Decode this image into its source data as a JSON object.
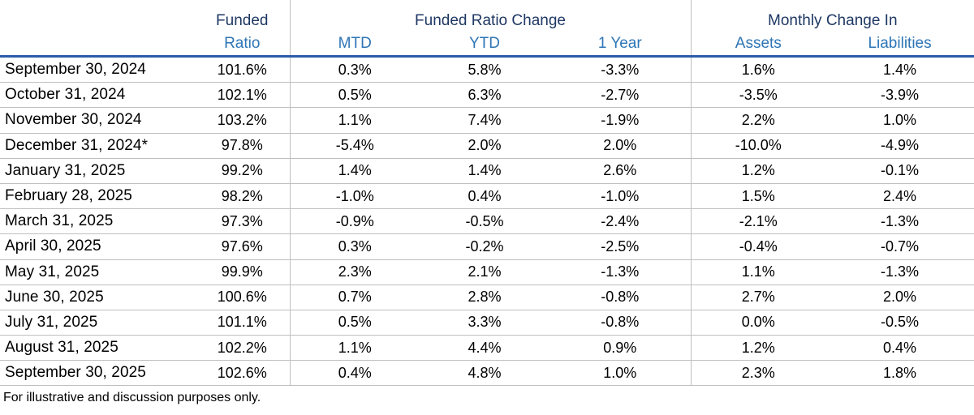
{
  "colors": {
    "group_header_text": "#1F3864",
    "column_header_text": "#2E75B6",
    "header_underline": "#2B5CA8",
    "grid_line": "#BFBFBF",
    "body_text": "#000000",
    "background": "#FFFFFF"
  },
  "header": {
    "funded": "Funded",
    "ratio": "Ratio",
    "funded_ratio_change": "Funded Ratio Change",
    "mtd": "MTD",
    "ytd": "YTD",
    "one_year": "1 Year",
    "monthly_change_in": "Monthly Change In",
    "assets": "Assets",
    "liabilities": "Liabilities"
  },
  "rows": [
    {
      "date": "September 30, 2024",
      "funded_ratio": "101.6%",
      "mtd": "0.3%",
      "ytd": "5.8%",
      "one_year": "-3.3%",
      "assets": "1.6%",
      "liabilities": "1.4%"
    },
    {
      "date": "October 31, 2024",
      "funded_ratio": "102.1%",
      "mtd": "0.5%",
      "ytd": "6.3%",
      "one_year": "-2.7%",
      "assets": "-3.5%",
      "liabilities": "-3.9%"
    },
    {
      "date": "November 30, 2024",
      "funded_ratio": "103.2%",
      "mtd": "1.1%",
      "ytd": "7.4%",
      "one_year": "-1.9%",
      "assets": "2.2%",
      "liabilities": "1.0%"
    },
    {
      "date": "December 31, 2024*",
      "funded_ratio": "97.8%",
      "mtd": "-5.4%",
      "ytd": "2.0%",
      "one_year": "2.0%",
      "assets": "-10.0%",
      "liabilities": "-4.9%"
    },
    {
      "date": "January 31, 2025",
      "funded_ratio": "99.2%",
      "mtd": "1.4%",
      "ytd": "1.4%",
      "one_year": "2.6%",
      "assets": "1.2%",
      "liabilities": "-0.1%"
    },
    {
      "date": "February 28, 2025",
      "funded_ratio": "98.2%",
      "mtd": "-1.0%",
      "ytd": "0.4%",
      "one_year": "-1.0%",
      "assets": "1.5%",
      "liabilities": "2.4%"
    },
    {
      "date": "March 31, 2025",
      "funded_ratio": "97.3%",
      "mtd": "-0.9%",
      "ytd": "-0.5%",
      "one_year": "-2.4%",
      "assets": "-2.1%",
      "liabilities": "-1.3%"
    },
    {
      "date": "April 30, 2025",
      "funded_ratio": "97.6%",
      "mtd": "0.3%",
      "ytd": "-0.2%",
      "one_year": "-2.5%",
      "assets": "-0.4%",
      "liabilities": "-0.7%"
    },
    {
      "date": "May 31, 2025",
      "funded_ratio": "99.9%",
      "mtd": "2.3%",
      "ytd": "2.1%",
      "one_year": "-1.3%",
      "assets": "1.1%",
      "liabilities": "-1.3%"
    },
    {
      "date": "June 30, 2025",
      "funded_ratio": "100.6%",
      "mtd": "0.7%",
      "ytd": "2.8%",
      "one_year": "-0.8%",
      "assets": "2.7%",
      "liabilities": "2.0%"
    },
    {
      "date": "July 31, 2025",
      "funded_ratio": "101.1%",
      "mtd": "0.5%",
      "ytd": "3.3%",
      "one_year": "-0.8%",
      "assets": "0.0%",
      "liabilities": "-0.5%"
    },
    {
      "date": "August 31, 2025",
      "funded_ratio": "102.2%",
      "mtd": "1.1%",
      "ytd": "4.4%",
      "one_year": "0.9%",
      "assets": "1.2%",
      "liabilities": "0.4%"
    },
    {
      "date": "September 30, 2025",
      "funded_ratio": "102.6%",
      "mtd": "0.4%",
      "ytd": "4.8%",
      "one_year": "1.0%",
      "assets": "2.3%",
      "liabilities": "1.8%"
    }
  ],
  "footer": {
    "note": "For illustrative and discussion purposes only."
  }
}
